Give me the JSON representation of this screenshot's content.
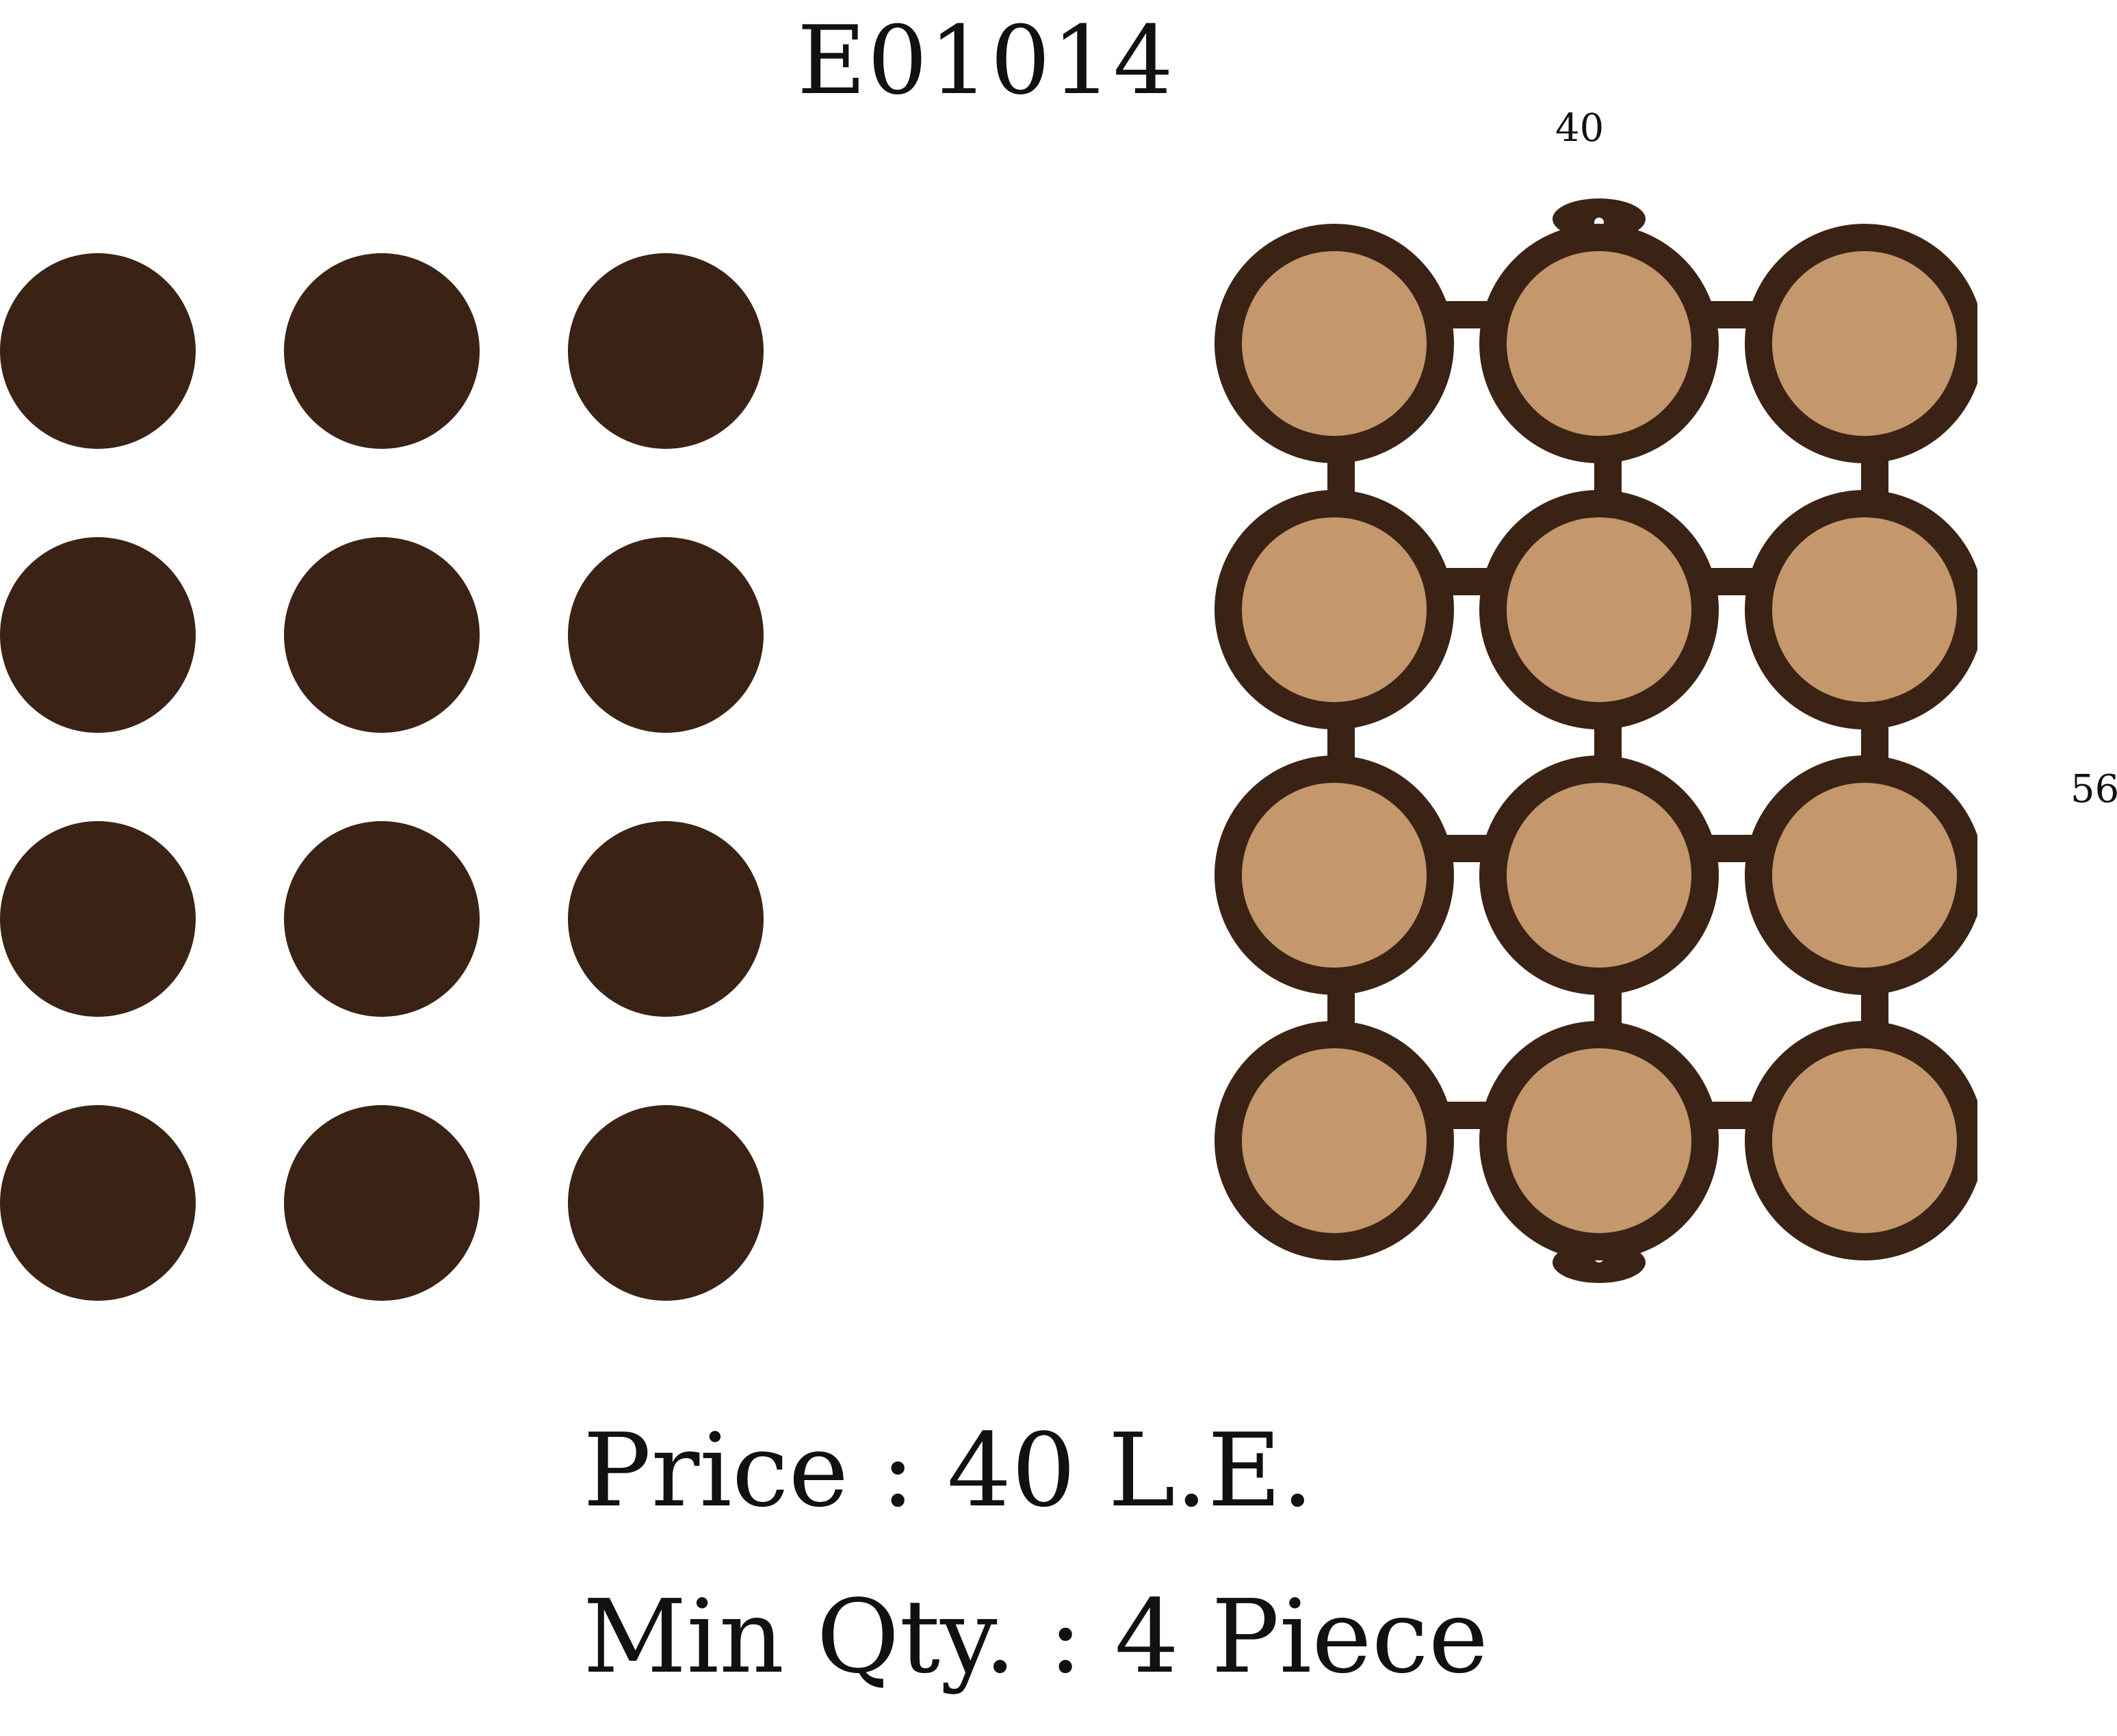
{
  "product": {
    "code": "E01014"
  },
  "dimensions": {
    "width": "40",
    "height": "56"
  },
  "details": {
    "price": "Price : 40 L.E.",
    "min_qty": "Min Qty. : 4 Piece"
  },
  "colors": {
    "dark_brown": "#3a2315",
    "light_brown": "#c4976c",
    "background": "#ffffff"
  },
  "pieces": {
    "disc_count": 12,
    "disc_grid": {
      "rows": 4,
      "columns": 3
    },
    "frame_grid": {
      "rows": 4,
      "columns": 3
    }
  },
  "icons": {
    "disc": "disc-icon",
    "frame": "circle-grid-frame-icon",
    "hanging_tab": "hanging-tab-icon"
  }
}
